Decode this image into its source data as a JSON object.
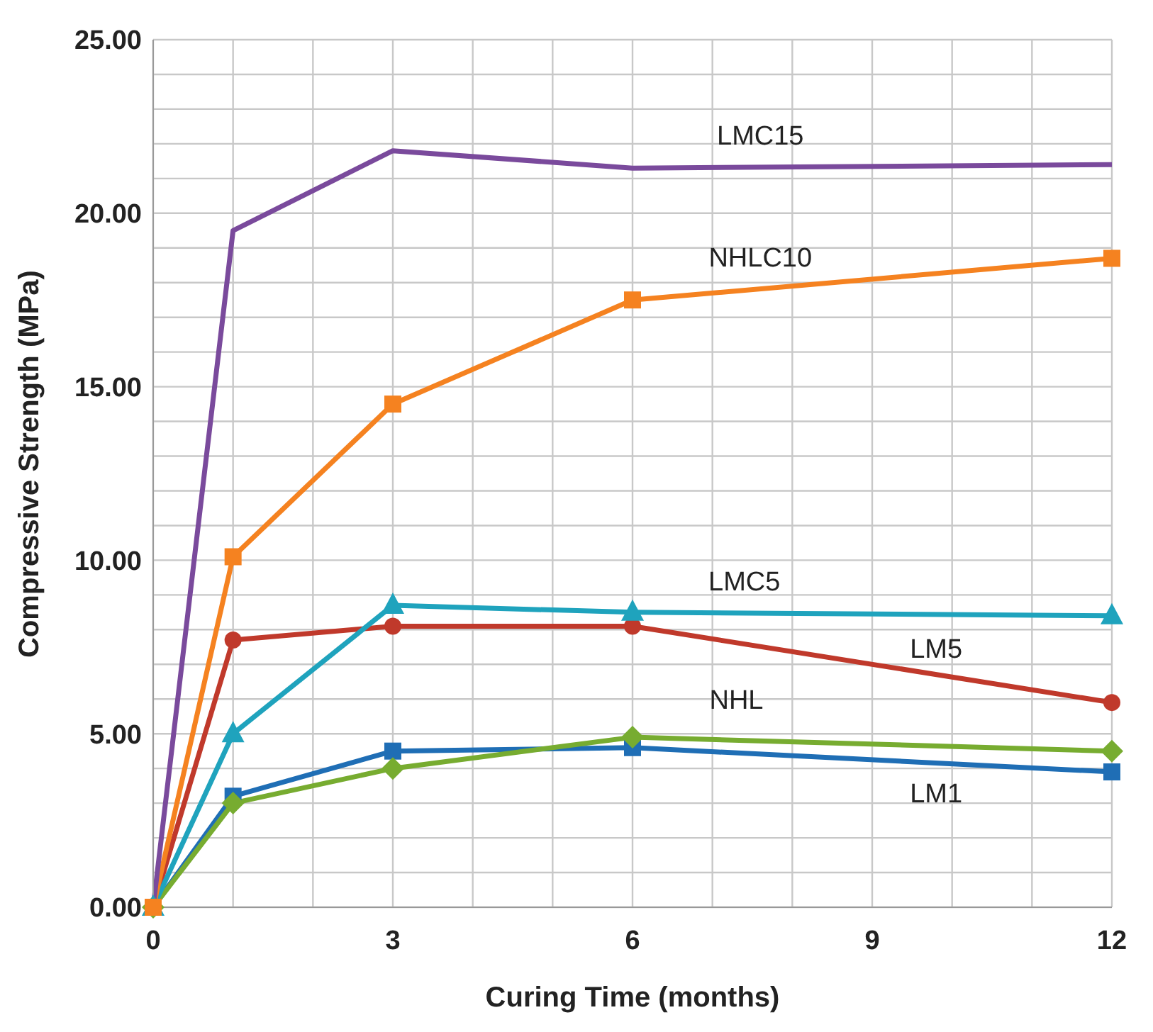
{
  "chart_data": {
    "type": "line",
    "xlabel": "Curing Time (months)",
    "ylabel": "Compressive Strength (MPa)",
    "x": [
      0,
      1,
      3,
      6,
      12
    ],
    "xlim": [
      0,
      12
    ],
    "xticks": [
      0,
      {
        "value": 1,
        "label": null
      },
      {
        "value": 2,
        "label": null
      },
      3,
      {
        "value": 4,
        "label": null
      },
      {
        "value": 5,
        "label": null
      },
      6,
      {
        "value": 7,
        "label": null
      },
      {
        "value": 8,
        "label": null
      },
      9,
      {
        "value": 10,
        "label": null
      },
      {
        "value": 11,
        "label": null
      },
      12
    ],
    "ylim": [
      0,
      25
    ],
    "yticks": [
      {
        "value": 0,
        "label": "0.00"
      },
      {
        "value": 1,
        "label": null
      },
      {
        "value": 2,
        "label": null
      },
      {
        "value": 3,
        "label": null
      },
      {
        "value": 4,
        "label": null
      },
      {
        "value": 5,
        "label": "5.00"
      },
      {
        "value": 6,
        "label": null
      },
      {
        "value": 7,
        "label": null
      },
      {
        "value": 8,
        "label": null
      },
      {
        "value": 9,
        "label": null
      },
      {
        "value": 10,
        "label": "10.00"
      },
      {
        "value": 11,
        "label": null
      },
      {
        "value": 12,
        "label": null
      },
      {
        "value": 13,
        "label": null
      },
      {
        "value": 14,
        "label": null
      },
      {
        "value": 15,
        "label": "15.00"
      },
      {
        "value": 16,
        "label": null
      },
      {
        "value": 17,
        "label": null
      },
      {
        "value": 18,
        "label": null
      },
      {
        "value": 19,
        "label": null
      },
      {
        "value": 20,
        "label": "20.00"
      },
      {
        "value": 21,
        "label": null
      },
      {
        "value": 22,
        "label": null
      },
      {
        "value": 23,
        "label": null
      },
      {
        "value": 24,
        "label": null
      },
      {
        "value": 25,
        "label": "25.00"
      }
    ],
    "grid": true,
    "series": [
      {
        "name": "LMC15",
        "color": "#7a4a9c",
        "marker": "none",
        "values": [
          0,
          19.5,
          21.8,
          21.3,
          21.4
        ]
      },
      {
        "name": "NHLC10",
        "color": "#f58220",
        "marker": "square",
        "values": [
          0,
          10.1,
          14.5,
          17.5,
          18.7
        ]
      },
      {
        "name": "LMC5",
        "color": "#1fa3bd",
        "marker": "triangle",
        "values": [
          0,
          5.0,
          8.7,
          8.5,
          8.4
        ]
      },
      {
        "name": "LM5",
        "color": "#c0392b",
        "marker": "circle",
        "values": [
          0,
          7.7,
          8.1,
          8.1,
          5.9
        ]
      },
      {
        "name": "NHL",
        "color": "#77ac30",
        "marker": "diamond",
        "values": [
          0,
          3.0,
          4.0,
          4.9,
          4.5
        ]
      },
      {
        "name": "LM1",
        "color": "#1f6eb5",
        "marker": "square",
        "values": [
          0,
          3.2,
          4.5,
          4.6,
          3.9
        ]
      }
    ]
  }
}
